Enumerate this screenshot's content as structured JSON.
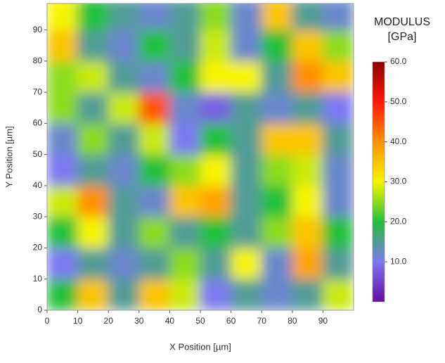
{
  "chart_data": {
    "type": "heatmap",
    "x_label": "X Position [µm]",
    "y_label": "Y Position [µm]",
    "colorbar_title": [
      "MODULUS",
      "[GPa]"
    ],
    "x": [
      5,
      15,
      25,
      35,
      45,
      55,
      65,
      75,
      85,
      95
    ],
    "y": [
      5,
      15,
      25,
      35,
      45,
      55,
      65,
      75,
      85,
      95
    ],
    "z": [
      [
        20,
        35,
        15,
        35,
        28,
        10,
        15,
        12,
        15,
        28
      ],
      [
        10,
        15,
        12,
        15,
        25,
        15,
        30,
        12,
        38,
        15
      ],
      [
        20,
        30,
        15,
        25,
        15,
        20,
        15,
        25,
        35,
        20
      ],
      [
        28,
        40,
        15,
        12,
        35,
        38,
        15,
        20,
        30,
        12
      ],
      [
        10,
        15,
        12,
        20,
        25,
        30,
        15,
        25,
        28,
        12
      ],
      [
        12,
        25,
        15,
        28,
        10,
        20,
        15,
        35,
        35,
        15
      ],
      [
        25,
        15,
        28,
        45,
        12,
        8,
        15,
        12,
        15,
        10
      ],
      [
        25,
        28,
        15,
        12,
        20,
        30,
        30,
        15,
        40,
        35
      ],
      [
        35,
        15,
        12,
        20,
        15,
        28,
        12,
        20,
        35,
        25
      ],
      [
        30,
        20,
        15,
        12,
        15,
        25,
        12,
        35,
        15,
        12
      ]
    ],
    "xlim": [
      0,
      100
    ],
    "ylim": [
      0,
      98.5
    ],
    "xticks": [
      0,
      10,
      20,
      30,
      40,
      50,
      60,
      70,
      80,
      90
    ],
    "yticks": [
      0,
      10,
      20,
      30,
      40,
      50,
      60,
      70,
      80,
      90
    ],
    "zlim": [
      0,
      60
    ],
    "zticks": [
      {
        "value": 10,
        "label": "10.0"
      },
      {
        "value": 20,
        "label": "20.0"
      },
      {
        "value": 30,
        "label": "30.0"
      },
      {
        "value": 40,
        "label": "40.0"
      },
      {
        "value": 50,
        "label": "50.0"
      },
      {
        "value": 60,
        "label": "60.0"
      }
    ],
    "colorscale": [
      "#6a0aa8",
      "#7b78f0",
      "#22c03a",
      "#f5f500",
      "#ff9000",
      "#ff1a00",
      "#8b0000"
    ]
  }
}
